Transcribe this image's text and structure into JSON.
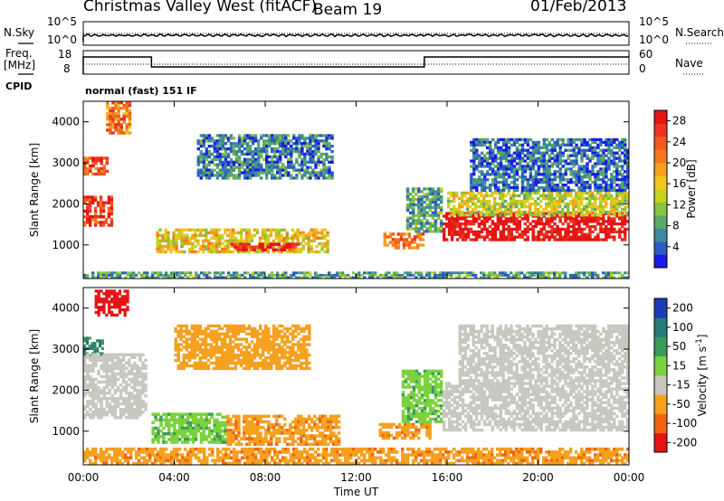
{
  "header": {
    "title": "Christmas Valley West (fitACF)",
    "beam": "Beam 19",
    "date": "01/Feb/2013"
  },
  "panels": {
    "nsky_label": "N.Sky",
    "nsky_ticks": [
      "10^5",
      "10^0"
    ],
    "nsearch_label": "N.Search",
    "nsearch_ticks": [
      "10^5",
      "10^0"
    ],
    "freq_label": "Freq.",
    "freq_unit": "[MHz]",
    "freq_ticks": [
      "18",
      "8"
    ],
    "nave_label": "Nave",
    "nave_ticks": [
      "60",
      "0"
    ],
    "cpid_label": "CPID",
    "cpid_text": "normal (fast) 151 IF"
  },
  "chart_data": [
    {
      "type": "heatmap",
      "parameter": "Power",
      "ylabel": "Slant Range [km]",
      "xlabel": "Time UT",
      "xlim": [
        "00:00",
        "24:00"
      ],
      "ylim": [
        180,
        4500
      ],
      "x_ticks": [
        "00:00",
        "04:00",
        "08:00",
        "12:00",
        "16:00",
        "20:00",
        "00:00"
      ],
      "y_ticks": [
        "1000",
        "2000",
        "3000",
        "4000"
      ],
      "colorbar": {
        "label": "Power [dB]",
        "ticks": [
          "4",
          "8",
          "12",
          "16",
          "20",
          "24",
          "28"
        ],
        "range": [
          0,
          30
        ],
        "colors": [
          "#1a1ae6",
          "#2b5cc4",
          "#3c8a9a",
          "#5ca86a",
          "#8ac23c",
          "#c8d21e",
          "#f0c81e",
          "#f5a020",
          "#f57820",
          "#f05a1e",
          "#eb321e",
          "#e61414"
        ]
      },
      "regions": [
        {
          "t": [
            0.0,
            1.3
          ],
          "r": [
            1450,
            2200
          ],
          "value": 26
        },
        {
          "t": [
            0.0,
            1.1
          ],
          "r": [
            2700,
            3150
          ],
          "value": 24
        },
        {
          "t": [
            1.0,
            2.1
          ],
          "r": [
            3700,
            4500
          ],
          "value": 22
        },
        {
          "t": [
            3.2,
            10.8
          ],
          "r": [
            800,
            1400
          ],
          "value": 16
        },
        {
          "t": [
            6.5,
            9.5
          ],
          "r": [
            850,
            1050
          ],
          "value": 27
        },
        {
          "t": [
            5.0,
            11.0
          ],
          "r": [
            2600,
            3700
          ],
          "value": 6
        },
        {
          "t": [
            13.2,
            15.0
          ],
          "r": [
            900,
            1300
          ],
          "value": 22
        },
        {
          "t": [
            14.2,
            15.8
          ],
          "r": [
            1300,
            2400
          ],
          "value": 8
        },
        {
          "t": [
            15.8,
            24.0
          ],
          "r": [
            1100,
            1800
          ],
          "value": 30
        },
        {
          "t": [
            16.0,
            24.0
          ],
          "r": [
            1700,
            2300
          ],
          "value": 14
        },
        {
          "t": [
            17.0,
            24.0
          ],
          "r": [
            2300,
            3600
          ],
          "value": 5
        },
        {
          "t": [
            0.0,
            24.0
          ],
          "r": [
            180,
            350
          ],
          "value": 8
        }
      ]
    },
    {
      "type": "heatmap",
      "parameter": "Velocity",
      "ylabel": "Slant Range [km]",
      "xlabel": "Time UT",
      "xlim": [
        "00:00",
        "24:00"
      ],
      "ylim": [
        180,
        4500
      ],
      "x_ticks": [
        "00:00",
        "04:00",
        "08:00",
        "12:00",
        "16:00",
        "20:00",
        "00:00"
      ],
      "y_ticks": [
        "1000",
        "2000",
        "3000",
        "4000"
      ],
      "colorbar": {
        "label": "Velocity [m s",
        "label_exp": "-1",
        "label_end": "]",
        "ticks": [
          "200",
          "100",
          "50",
          "15",
          "-15",
          "-50",
          "-100",
          "-200"
        ],
        "colors": [
          "#1e3cb4",
          "#2a7a7a",
          "#3c9a5a",
          "#7ad23c",
          "#c8c8c0",
          "#f5a01e",
          "#f06414",
          "#e61414"
        ]
      },
      "regions": [
        {
          "t": [
            0.5,
            2.0
          ],
          "r": [
            3800,
            4450
          ],
          "value": -200
        },
        {
          "t": [
            0.0,
            0.9
          ],
          "r": [
            2800,
            3300
          ],
          "value": 100
        },
        {
          "t": [
            0.0,
            2.8
          ],
          "r": [
            1300,
            2900
          ],
          "value": 0
        },
        {
          "t": [
            3.0,
            6.3
          ],
          "r": [
            700,
            1450
          ],
          "value": 40
        },
        {
          "t": [
            6.3,
            11.3
          ],
          "r": [
            650,
            1400
          ],
          "value": -40
        },
        {
          "t": [
            13.0,
            15.3
          ],
          "r": [
            800,
            1200
          ],
          "value": -40
        },
        {
          "t": [
            14.0,
            15.8
          ],
          "r": [
            1200,
            2500
          ],
          "value": 40
        },
        {
          "t": [
            15.8,
            24.0
          ],
          "r": [
            1000,
            2200
          ],
          "value": 0
        },
        {
          "t": [
            16.5,
            24.0
          ],
          "r": [
            2200,
            3600
          ],
          "value": 0
        },
        {
          "t": [
            4.0,
            10.0
          ],
          "r": [
            2500,
            3600
          ],
          "value": -30
        },
        {
          "t": [
            0.0,
            24.0
          ],
          "r": [
            180,
            600
          ],
          "value": -40
        }
      ]
    }
  ]
}
